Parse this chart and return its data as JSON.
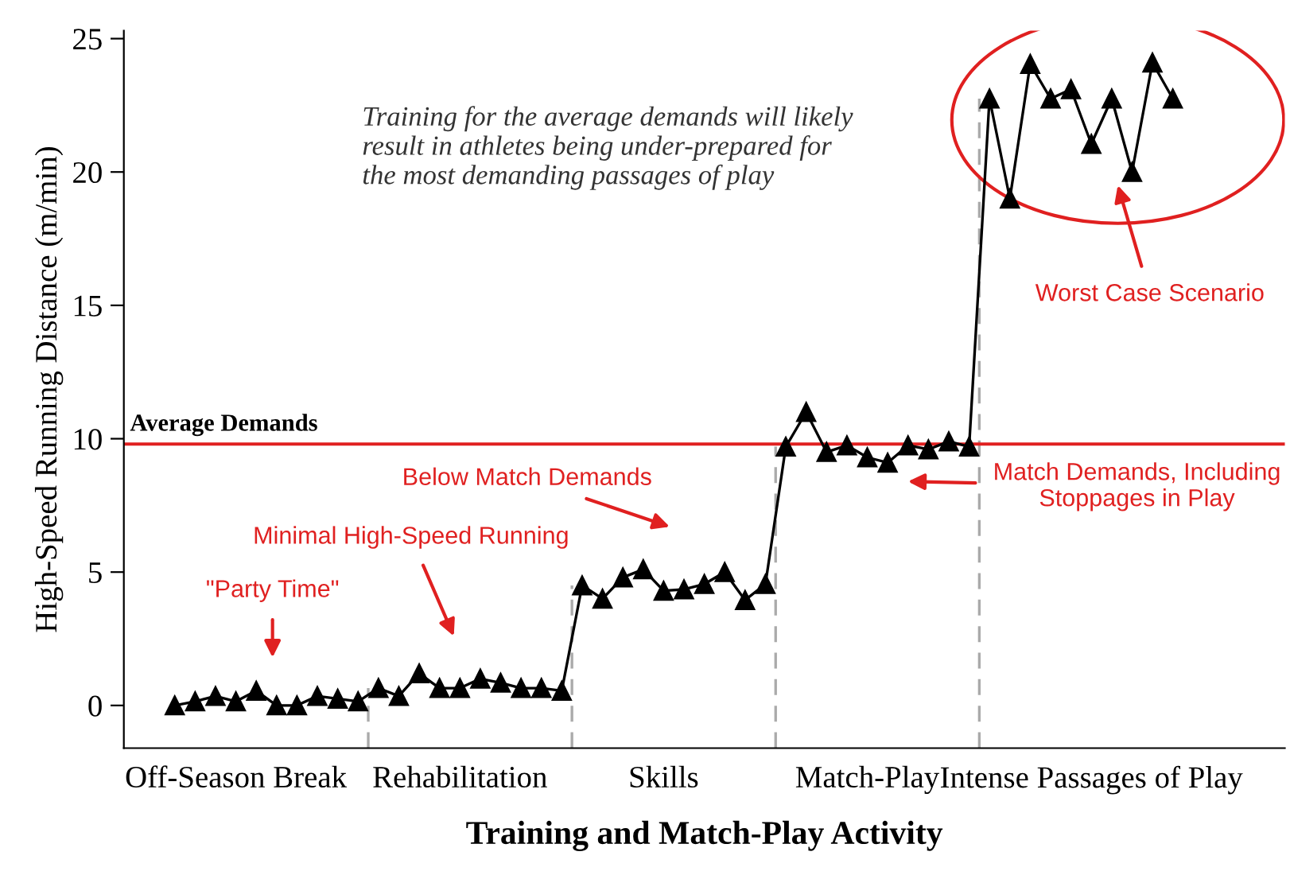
{
  "chart_data": {
    "type": "line",
    "xlabel": "Training and Match-Play Activity",
    "ylabel": "High-Speed Running Distance (m/min)",
    "categories": [
      null,
      null,
      null,
      "Off-Season Break",
      null,
      null,
      null,
      null,
      null,
      null,
      null,
      null,
      null,
      null,
      "Rehabilitation",
      null,
      null,
      null,
      null,
      null,
      null,
      null,
      null,
      null,
      "Skills",
      null,
      null,
      null,
      null,
      null,
      null,
      null,
      null,
      null,
      "Match-Play",
      null,
      null,
      null,
      null,
      null,
      null,
      null,
      null,
      null,
      null,
      "Intense Passages of Play",
      null,
      null,
      null,
      null
    ],
    "series": [
      {
        "color": "#000000",
        "marker": "triangle",
        "values": [
          0,
          0.15,
          0.35,
          0.15,
          0.55,
          0,
          0,
          0.35,
          0.25,
          0.15,
          0.65,
          0.35,
          1.2,
          0.65,
          0.65,
          1.0,
          0.85,
          0.65,
          0.65,
          0.55,
          4.5,
          4.0,
          4.8,
          5.1,
          4.3,
          4.35,
          4.55,
          5.0,
          3.95,
          4.55,
          9.7,
          11.0,
          9.5,
          9.75,
          9.3,
          9.1,
          9.75,
          9.6,
          9.9,
          9.7,
          22.75,
          19.0,
          24.05,
          22.75,
          23.1,
          21.05,
          22.75,
          20.0,
          24.1,
          22.75
        ]
      }
    ],
    "ylim": [
      -1.6,
      25.3
    ],
    "yticks": [
      0,
      5,
      10,
      15,
      20,
      25
    ],
    "ref_lines": [
      {
        "axis": "y",
        "value": 9.8,
        "label": "Average Demands",
        "color": "#e02020",
        "line_style": "solid"
      }
    ],
    "annotations": [
      "\"Party Time\"",
      "Minimal High-Speed Running",
      "Below Match Demands",
      "Match Demands, Including\nStoppages in Play",
      "Worst Case Scenario",
      "Training for the average demands will likely\nresult in athletes being under-prepared for\nthe most demanding passages of play"
    ]
  }
}
